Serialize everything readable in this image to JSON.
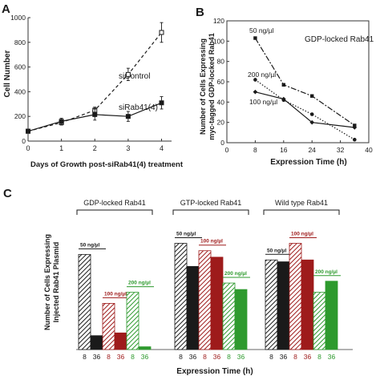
{
  "colors": {
    "black": "#1a1a1a",
    "red": "#9e1b1b",
    "green": "#2e9a2e",
    "axis": "#333333"
  },
  "chart_data": [
    {
      "panel": "A",
      "type": "line",
      "xlabel": "Days of Growth post-siRab41(4) treatment",
      "ylabel": "Cell Number",
      "xlim": [
        0,
        4.3
      ],
      "ylim": [
        0,
        1000
      ],
      "xticks": [
        "0",
        "1",
        "2",
        "3",
        "4"
      ],
      "yticks": [
        "0",
        "200",
        "400",
        "600",
        "800",
        "1000"
      ],
      "series": [
        {
          "name": "siControl",
          "style": "dashed",
          "marker": "open-square",
          "x": [
            0,
            1,
            2,
            3,
            4
          ],
          "y": [
            80,
            150,
            250,
            540,
            880
          ],
          "err": [
            15,
            20,
            25,
            50,
            80
          ]
        },
        {
          "name": "siRab41(4)",
          "style": "solid",
          "marker": "filled-square",
          "x": [
            0,
            1,
            2,
            3,
            4
          ],
          "y": [
            80,
            160,
            215,
            200,
            310
          ],
          "err": [
            15,
            25,
            45,
            40,
            50
          ]
        }
      ]
    },
    {
      "panel": "B",
      "type": "line",
      "title": "GDP-locked Rab41",
      "xlabel": "Expression Time (h)",
      "ylabel_line1": "Number of Cells Expressing",
      "ylabel_line2": "myc-tagged GDP-locked Rab41",
      "xlim": [
        0,
        40
      ],
      "ylim": [
        0,
        120
      ],
      "xticks": [
        "0",
        "8",
        "16",
        "24",
        "32",
        "40"
      ],
      "yticks": [
        "0",
        "20",
        "40",
        "60",
        "80",
        "100",
        "120"
      ],
      "series": [
        {
          "name": "50 ng/µl",
          "style": "dashdot",
          "marker": "square",
          "x": [
            8,
            16,
            24,
            36
          ],
          "y": [
            103,
            57,
            46,
            17
          ]
        },
        {
          "name": "200 ng/µl",
          "style": "dotted",
          "marker": "circle",
          "x": [
            8,
            16,
            24,
            36
          ],
          "y": [
            62,
            42,
            28,
            3
          ]
        },
        {
          "name": "100 ng/µl",
          "style": "solid",
          "marker": "diamond",
          "x": [
            8,
            16,
            24,
            36
          ],
          "y": [
            50,
            43,
            20,
            15
          ]
        }
      ]
    },
    {
      "panel": "C",
      "type": "bar",
      "xlabel": "Expression Time (h)",
      "ylabel_line1": "Number of Cells Expressing",
      "ylabel_line2": "Injected Rab41 Plasmid",
      "ylim": [
        0,
        125
      ],
      "groups": [
        {
          "title": "GDP-locked Rab41",
          "bars": [
            {
              "conc": "50 ng/µl",
              "time": "8",
              "value": 103,
              "color": "black",
              "fill": "hatch"
            },
            {
              "conc": "50 ng/µl",
              "time": "36",
              "value": 15,
              "color": "black",
              "fill": "solid"
            },
            {
              "conc": "100 ng/µl",
              "time": "8",
              "value": 50,
              "color": "red",
              "fill": "hatch"
            },
            {
              "conc": "100 ng/µl",
              "time": "36",
              "value": 18,
              "color": "red",
              "fill": "solid"
            },
            {
              "conc": "200 ng/µl",
              "time": "8",
              "value": 62,
              "color": "green",
              "fill": "hatch"
            },
            {
              "conc": "200 ng/µl",
              "time": "36",
              "value": 3,
              "color": "green",
              "fill": "solid"
            }
          ]
        },
        {
          "title": "GTP-locked Rab41",
          "bars": [
            {
              "conc": "50 ng/µl",
              "time": "8",
              "value": 115,
              "color": "black",
              "fill": "hatch"
            },
            {
              "conc": "50 ng/µl",
              "time": "36",
              "value": 90,
              "color": "black",
              "fill": "solid"
            },
            {
              "conc": "100 ng/µl",
              "time": "8",
              "value": 107,
              "color": "red",
              "fill": "hatch"
            },
            {
              "conc": "100 ng/µl",
              "time": "36",
              "value": 100,
              "color": "red",
              "fill": "solid"
            },
            {
              "conc": "200 ng/µl",
              "time": "8",
              "value": 72,
              "color": "green",
              "fill": "hatch"
            },
            {
              "conc": "200 ng/µl",
              "time": "36",
              "value": 65,
              "color": "green",
              "fill": "solid"
            }
          ]
        },
        {
          "title": "Wild type Rab41",
          "bars": [
            {
              "conc": "50 ng/µl",
              "time": "8",
              "value": 97,
              "color": "black",
              "fill": "hatch"
            },
            {
              "conc": "50 ng/µl",
              "time": "36",
              "value": 95,
              "color": "black",
              "fill": "solid"
            },
            {
              "conc": "100 ng/µl",
              "time": "8",
              "value": 115,
              "color": "red",
              "fill": "hatch"
            },
            {
              "conc": "100 ng/µl",
              "time": "36",
              "value": 97,
              "color": "red",
              "fill": "solid"
            },
            {
              "conc": "200 ng/µl",
              "time": "8",
              "value": 62,
              "color": "green",
              "fill": "hatch"
            },
            {
              "conc": "200 ng/µl",
              "time": "36",
              "value": 74,
              "color": "green",
              "fill": "solid"
            }
          ]
        }
      ]
    }
  ],
  "panel_labels": {
    "a": "A",
    "b": "B",
    "c": "C"
  }
}
